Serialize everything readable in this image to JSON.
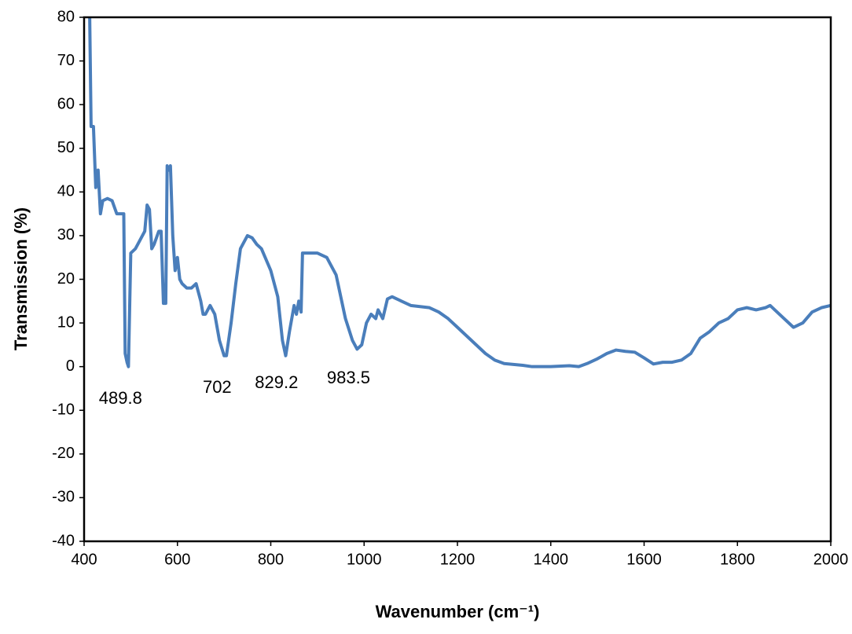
{
  "chart_data": {
    "type": "line",
    "x_label": "Wavenumber (cm⁻¹)",
    "y_label": "Transmission (%)",
    "xlim": [
      400,
      2000
    ],
    "xticks": [
      400,
      600,
      800,
      1000,
      1200,
      1400,
      1600,
      1800,
      2000
    ],
    "ylim": [
      -40,
      80
    ],
    "yticks": [
      -40,
      -30,
      -20,
      -10,
      0,
      10,
      20,
      30,
      40,
      50,
      60,
      70,
      80
    ],
    "grid": false,
    "annotations": [
      489.8,
      702,
      829.2,
      983.5
    ],
    "x": [
      412,
      415,
      420,
      425,
      430,
      435,
      440,
      450,
      460,
      470,
      480,
      485,
      488,
      492,
      495,
      500,
      510,
      520,
      530,
      535,
      540,
      545,
      550,
      560,
      565,
      570,
      575,
      578,
      582,
      585,
      590,
      595,
      600,
      605,
      610,
      620,
      630,
      640,
      650,
      655,
      660,
      670,
      680,
      690,
      700,
      705,
      715,
      725,
      735,
      750,
      760,
      770,
      780,
      800,
      815,
      825,
      832,
      840,
      850,
      855,
      860,
      865,
      868,
      880,
      900,
      920,
      940,
      960,
      975,
      985,
      995,
      1005,
      1015,
      1025,
      1030,
      1040,
      1050,
      1060,
      1080,
      1100,
      1140,
      1160,
      1180,
      1200,
      1220,
      1240,
      1260,
      1280,
      1300,
      1340,
      1360,
      1400,
      1440,
      1460,
      1480,
      1500,
      1520,
      1540,
      1560,
      1580,
      1600,
      1620,
      1640,
      1660,
      1680,
      1700,
      1720,
      1740,
      1760,
      1780,
      1800,
      1820,
      1840,
      1860,
      1870,
      1880,
      1900,
      1920,
      1940,
      1960,
      1980,
      2000
    ],
    "series": [
      {
        "color": "#4a7ebb",
        "values": [
          80,
          55,
          55,
          41,
          45,
          35,
          38,
          38.5,
          38,
          35,
          35,
          35,
          3,
          1,
          0,
          26,
          27,
          29,
          31,
          37,
          36,
          27,
          28,
          31,
          31,
          14.5,
          14.5,
          46,
          45,
          46,
          30,
          22,
          25,
          20,
          19,
          18,
          18,
          19,
          15,
          12,
          12,
          14,
          12,
          6,
          2.5,
          2.5,
          10,
          19,
          27,
          30,
          29.5,
          28,
          27,
          22,
          16,
          6,
          2.5,
          8,
          14,
          12,
          15,
          12.5,
          26,
          26,
          26,
          25,
          21,
          11,
          6,
          4,
          5,
          10,
          12,
          11,
          13,
          11,
          15.5,
          16,
          15,
          14,
          13.5,
          12.5,
          11,
          9,
          7,
          5,
          3,
          1.5,
          0.7,
          0.3,
          0,
          0,
          0.2,
          0,
          0.8,
          1.8,
          3,
          3.8,
          3.5,
          3.3,
          2,
          0.6,
          1,
          1,
          1.5,
          3,
          6.5,
          8,
          10,
          11,
          13,
          13.5,
          13,
          13.5,
          14,
          13,
          11,
          9,
          10,
          12.5,
          13.5,
          14
        ]
      }
    ]
  }
}
